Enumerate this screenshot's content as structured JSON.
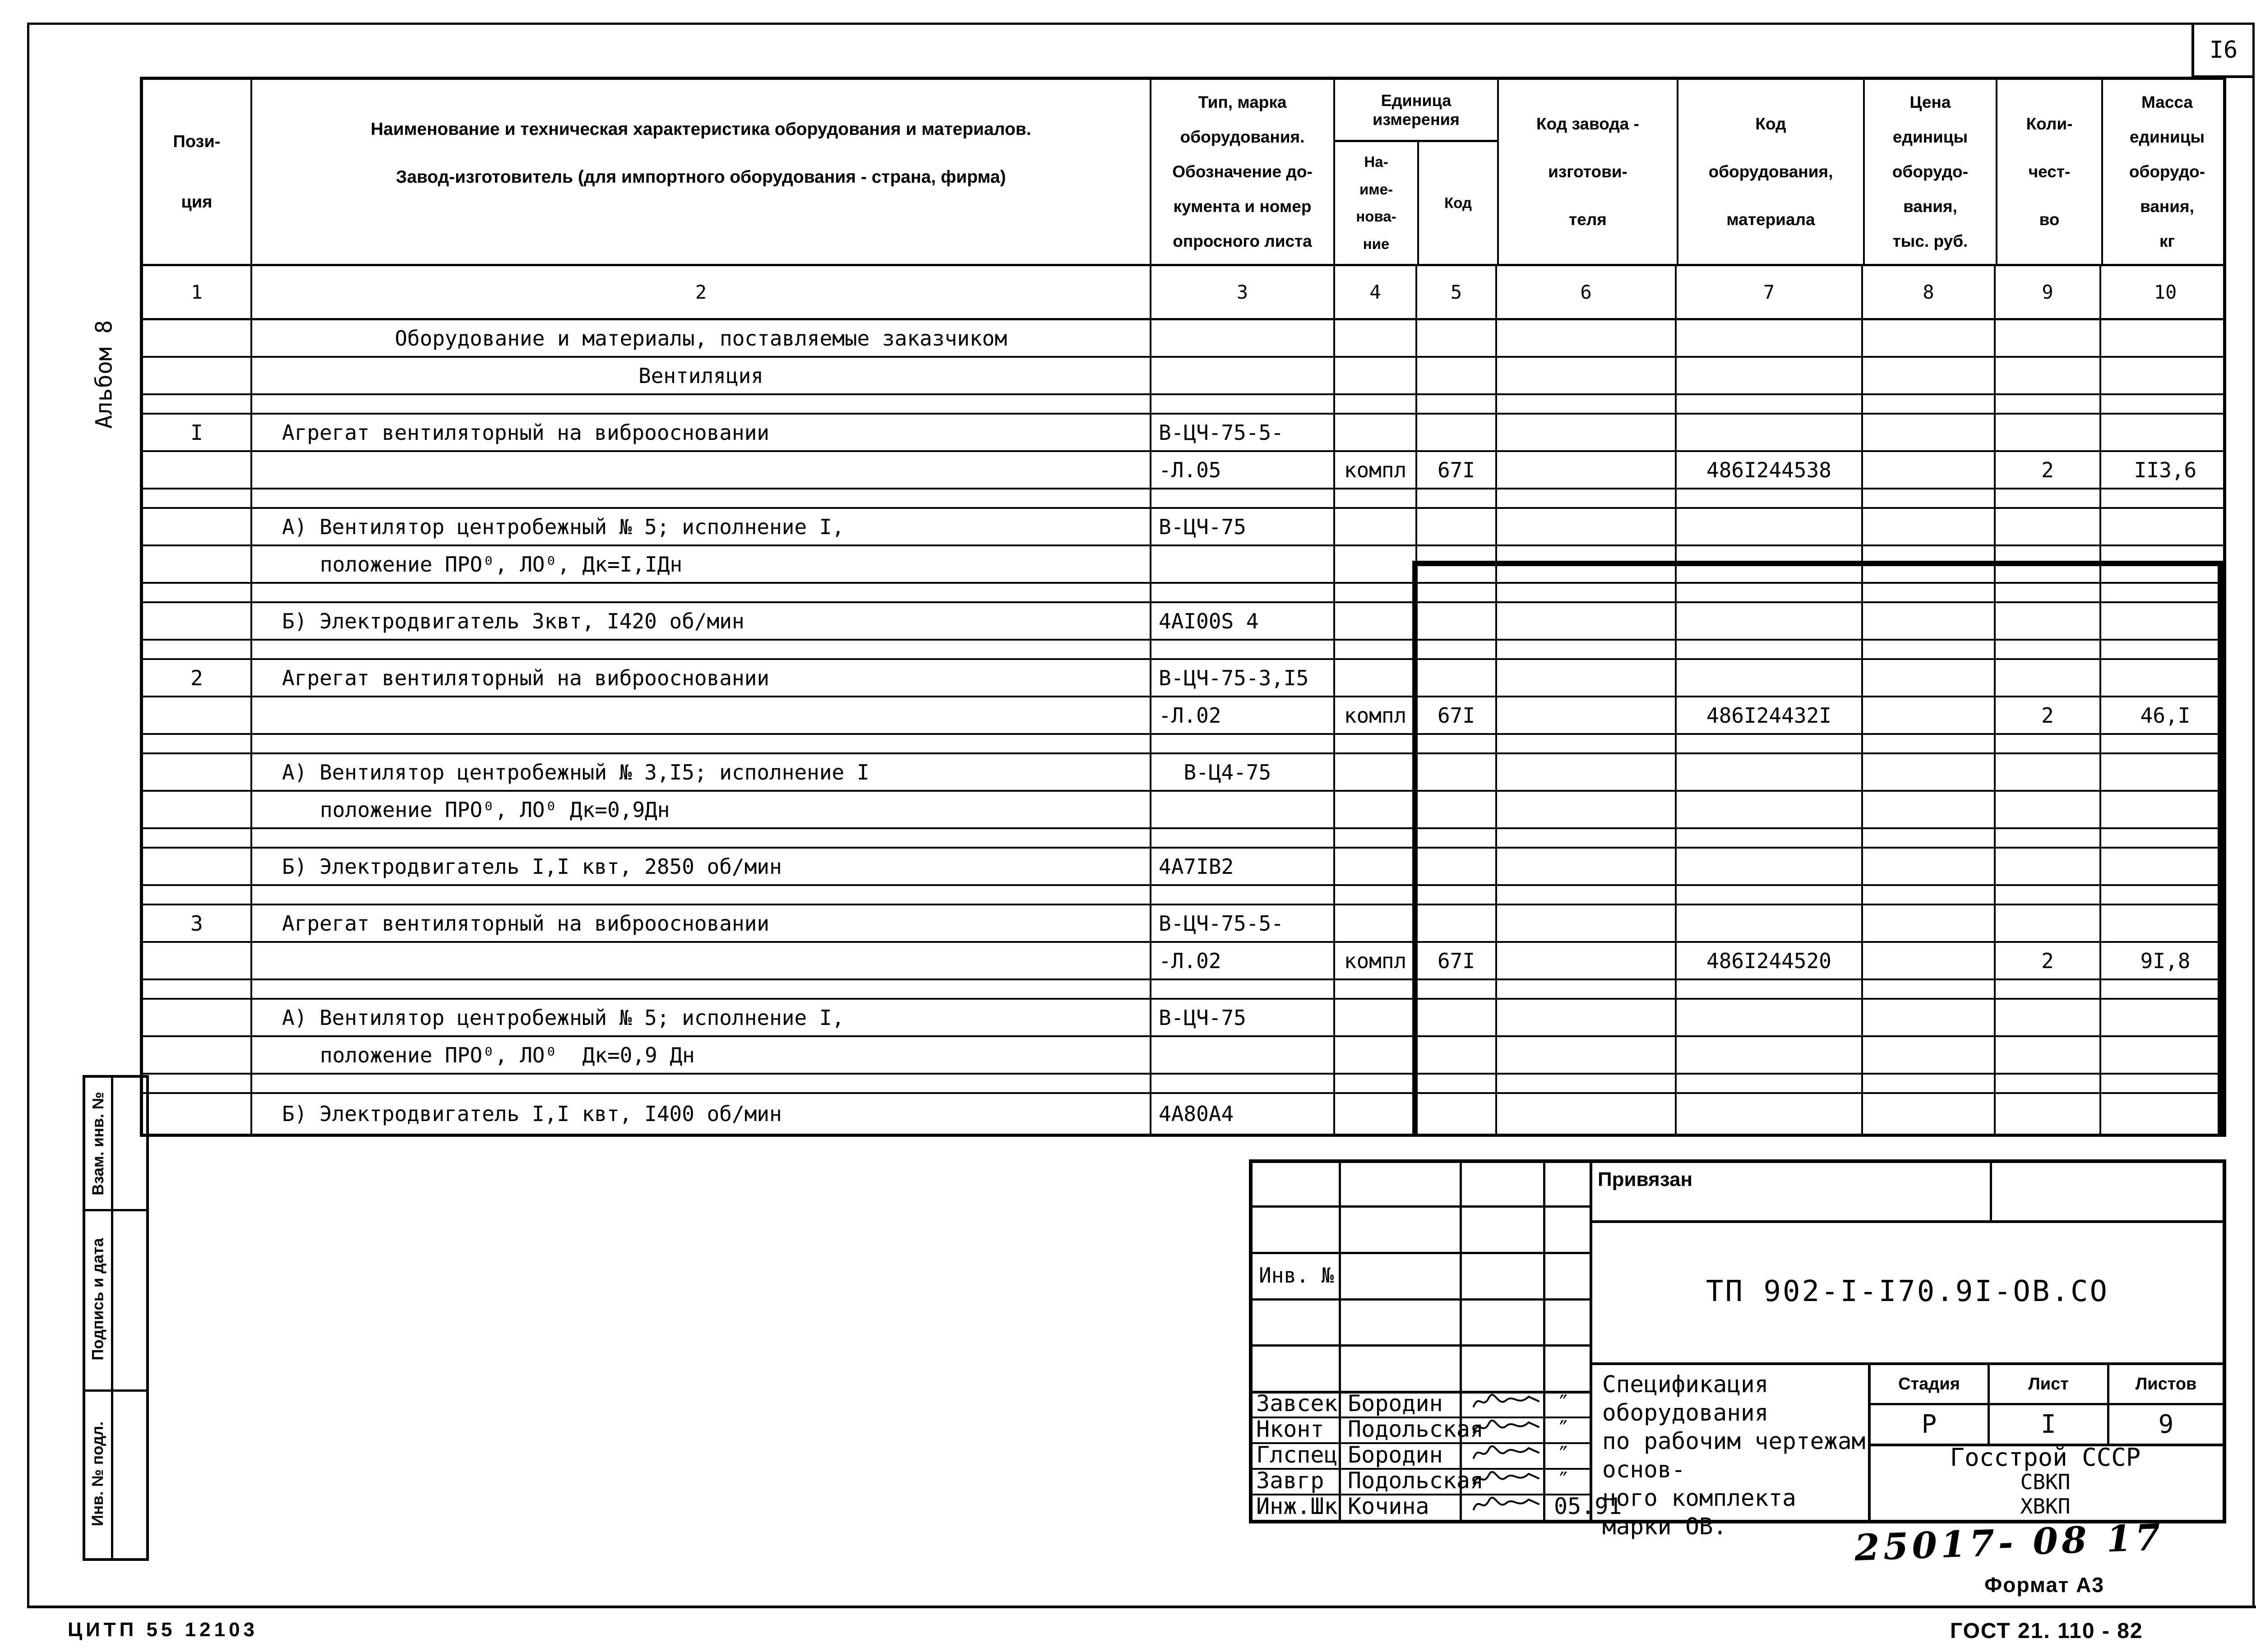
{
  "page": {
    "number": "I6",
    "album_label": "Альбом 8",
    "citp": "ЦИТП  55 12103",
    "format_label": "Формат А3",
    "gost_label": "ГОСТ 21. 110 - 82",
    "handwritten_number": "25017- 08  17"
  },
  "table": {
    "headers": {
      "col1": [
        "Пози-",
        "ция"
      ],
      "col2": [
        "Наименование и техническая характеристика   оборудования и материалов.",
        "Завод-изготовитель  (для импортного оборудования -   страна, фирма)"
      ],
      "col3": [
        "Тип,   марка",
        "оборудования.",
        "Обозначение до-",
        "кумента и номер",
        "опросного листа"
      ],
      "unit_group": [
        "Единица",
        "измерения"
      ],
      "col4": [
        "На-",
        "име-",
        "нова-",
        "ние"
      ],
      "col5": "Код",
      "col6": [
        "Код   завода -",
        "изготови-",
        "теля"
      ],
      "col7": [
        "Код",
        "оборудования,",
        "материала"
      ],
      "col8": [
        "Цена",
        "единицы",
        "оборудо-",
        "вания,",
        "тыс. руб."
      ],
      "col9": [
        "Коли-",
        "чест-",
        "во"
      ],
      "col10": [
        "Масса",
        "единицы",
        "оборудо-",
        "вания,",
        "кг"
      ]
    },
    "col_numbers": [
      "1",
      "2",
      "3",
      "4",
      "5",
      "6",
      "7",
      "8",
      "9",
      "10"
    ],
    "rows": [
      {
        "kind": "section",
        "name": "Оборудование и материалы, поставляемые заказчиком"
      },
      {
        "kind": "section",
        "name": "Вентиляция"
      },
      {
        "kind": "blank"
      },
      {
        "kind": "item",
        "pos": "I",
        "name": "Агрегат вентиляторный на виброосновании",
        "type": "В-ЦЧ-75-5-"
      },
      {
        "kind": "item",
        "type": "-Л.05",
        "unit": "компл",
        "ucode": "67I",
        "mat": "486I244538",
        "qty": "2",
        "mass": "II3,6"
      },
      {
        "kind": "blank"
      },
      {
        "kind": "item",
        "name": "А) Вентилятор центробежный № 5; исполнение I,",
        "type": "В-ЦЧ-75"
      },
      {
        "kind": "item2",
        "name": "положение ПРО⁰, ЛО⁰, Дк=I,IДн"
      },
      {
        "kind": "blank"
      },
      {
        "kind": "item",
        "name": "Б) Электродвигатель 3квт, I420 об/мин",
        "type": "4АI00S 4"
      },
      {
        "kind": "blank"
      },
      {
        "kind": "item",
        "pos": "2",
        "name": "Агрегат вентиляторный на виброосновании",
        "type": "В-ЦЧ-75-3,I5"
      },
      {
        "kind": "item",
        "type": "-Л.02",
        "unit": "компл",
        "ucode": "67I",
        "mat": "486I24432I",
        "qty": "2",
        "mass": "46,I"
      },
      {
        "kind": "blank"
      },
      {
        "kind": "item",
        "name": "А) Вентилятор центробежный № 3,I5; исполнение I",
        "type": "  В-Ц4-75"
      },
      {
        "kind": "item2",
        "name": "положение ПРО⁰, ЛО⁰ Дк=0,9Дн"
      },
      {
        "kind": "blank"
      },
      {
        "kind": "item",
        "name": "Б) Электродвигатель I,I квт, 2850 об/мин",
        "type": "4А7IВ2"
      },
      {
        "kind": "blank"
      },
      {
        "kind": "item",
        "pos": "3",
        "name": "Агрегат вентиляторный на виброосновании",
        "type": "В-ЦЧ-75-5-"
      },
      {
        "kind": "item",
        "type": "-Л.02",
        "unit": "компл",
        "ucode": "67I",
        "mat": "486I244520",
        "qty": "2",
        "mass": "9I,8"
      },
      {
        "kind": "blank"
      },
      {
        "kind": "item",
        "name": "А) Вентилятор центробежный № 5; исполнение I,",
        "type": "В-ЦЧ-75"
      },
      {
        "kind": "item2",
        "name": "положение ПРО⁰, ЛО⁰  Дк=0,9 Дн"
      },
      {
        "kind": "blank"
      },
      {
        "kind": "item",
        "name": "Б) Электродвигатель I,I квт, I400 об/мин",
        "type": "4А80А4"
      }
    ]
  },
  "sidebar": {
    "labels": [
      "Взам. инв. №",
      "Подпись и дата",
      "Инв. № подл."
    ]
  },
  "title_block": {
    "privyazan_label": "Привязан",
    "inv_label": "Инв. №",
    "doc_number": "ТП 902-I-I70.9I-ОВ.СО",
    "title_lines": [
      "Спецификация оборудования",
      "по рабочим чертежам основ-",
      "ного комплекта марки ОВ."
    ],
    "stage_headers": [
      "Стадия",
      "Лист",
      "Листов"
    ],
    "stage_values": [
      "Р",
      "I",
      "9"
    ],
    "org_lines": [
      "Госстрой СССР",
      "СВКП",
      "ХВКП"
    ],
    "signatures": [
      {
        "role": "Завсек",
        "name": "Бородин",
        "date": "″"
      },
      {
        "role": "Нконт",
        "name": "Подольская",
        "date": "″"
      },
      {
        "role": "Глспец",
        "name": "Бородин",
        "date": "″"
      },
      {
        "role": "Завгр",
        "name": "Подольская",
        "date": "″"
      },
      {
        "role": "Инж.Шк",
        "name": "Кочина",
        "date": "05.91"
      }
    ]
  }
}
